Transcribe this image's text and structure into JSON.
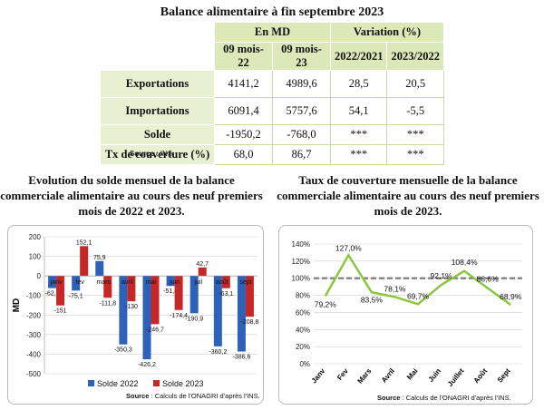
{
  "table": {
    "title": "Balance alimentaire à fin septembre 2023",
    "group_md": "En MD",
    "group_var": "Variation (%)",
    "cols": [
      "09 mois-22",
      "09 mois-23",
      "2022/2021",
      "2023/2022"
    ],
    "rows": [
      {
        "label": "Exportations",
        "v": [
          "4141,2",
          "4989,6",
          "28,5",
          "20,5"
        ]
      },
      {
        "label": "Importations",
        "v": [
          "6091,4",
          "5757,6",
          "54,1",
          "-5,5"
        ]
      },
      {
        "label": "Solde",
        "v": [
          "-1950,2",
          "-768,0",
          "***",
          "***"
        ]
      },
      {
        "label": "Tx de couverture (%)",
        "v": [
          "68,0",
          "86,7",
          "***",
          "***"
        ]
      }
    ],
    "source_label": "Source",
    "source_text": " : INS."
  },
  "chart1_title": "Evolution du solde mensuel de la balance commerciale alimentaire au cours des neuf premiers mois de 2022 et 2023.",
  "chart2_title": "Taux de couverture mensuelle de la balance commerciale alimentaire au cours des neuf premiers mois de 2023.",
  "chart_data": [
    {
      "type": "bar",
      "ylabel": "MD",
      "ylim": [
        -500,
        200
      ],
      "yticks": [
        "200",
        "100",
        "0",
        "-100",
        "-200",
        "-300",
        "-400",
        "-500"
      ],
      "categories": [
        "janv",
        "fév",
        "mars",
        "avril",
        "mai",
        "juin",
        "juil",
        "août",
        "sept"
      ],
      "series": [
        {
          "name": "Solde 2022",
          "color": "#2e62b8",
          "values": [
            -62.4,
            -75.1,
            75.9,
            -350.3,
            -426.2,
            -51.4,
            -190.9,
            -360.2,
            -386.6
          ],
          "labels": [
            "-62,4",
            "-75,1",
            "75,9",
            "-350,3",
            "-426,2",
            "-51,4",
            "-190,9",
            "-360,2",
            "-386,6"
          ]
        },
        {
          "name": "Solde 2023",
          "color": "#c62828",
          "values": [
            -151,
            152.1,
            -111.8,
            -130,
            -246.7,
            -174.4,
            42.7,
            -63.1,
            -208.8
          ],
          "labels": [
            "-151",
            "152,1",
            "-111,8",
            "-130",
            "-246,7",
            "-174,4",
            "42,7",
            "-63,1",
            "-208,8"
          ]
        }
      ],
      "source_label": "Source",
      "source_text": " : Calculs de l'ONAGRI d'après l'INS."
    },
    {
      "type": "line",
      "ylim": [
        0,
        140
      ],
      "yticks": [
        "140%",
        "120%",
        "100%",
        "80%",
        "60%",
        "40%",
        "20%",
        "0%"
      ],
      "categories": [
        "Janv",
        "Fev",
        "Mars",
        "Avril",
        "Mai",
        "Juin",
        "Juillet",
        "Août",
        "Sept"
      ],
      "reference_line": 100,
      "series": [
        {
          "color": "#8cc63f",
          "values": [
            79.2,
            127.0,
            83.5,
            78.1,
            69.7,
            92.1,
            108.4,
            88.6,
            68.9
          ],
          "labels": [
            "79,2%",
            "127,0%",
            "83,5%",
            "78,1%",
            "69,7%",
            "92,1%",
            "108,4%",
            "88,6%",
            "68,9%"
          ]
        }
      ],
      "source_label": "Source",
      "source_text": " : Calculs de l'ONAGRI d'après l'INS."
    }
  ]
}
